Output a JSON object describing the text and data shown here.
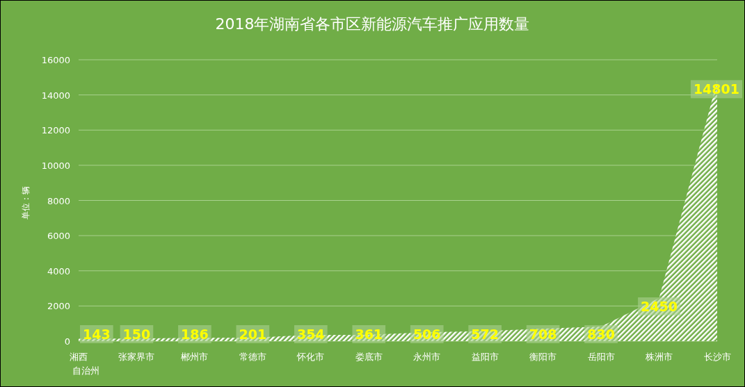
{
  "chart_data": {
    "type": "area",
    "title": "2018年湖南省各市区新能源汽车推广应用数量",
    "ylabel": "单位：辆",
    "categories": [
      "湘西自治州",
      "张家界市",
      "郴州市",
      "常德市",
      "怀化市",
      "娄底市",
      "永州市",
      "益阳市",
      "衡阳市",
      "岳阳市",
      "株洲市",
      "长沙市"
    ],
    "values": [
      143,
      150,
      186,
      201,
      354,
      361,
      506,
      572,
      708,
      830,
      2450,
      14801
    ],
    "color": "#ffffff",
    "ylim": [
      0,
      16000
    ],
    "yticks": [
      0,
      2000,
      4000,
      6000,
      8000,
      10000,
      12000,
      14000,
      16000
    ],
    "grid": "y",
    "data_labels": true
  }
}
